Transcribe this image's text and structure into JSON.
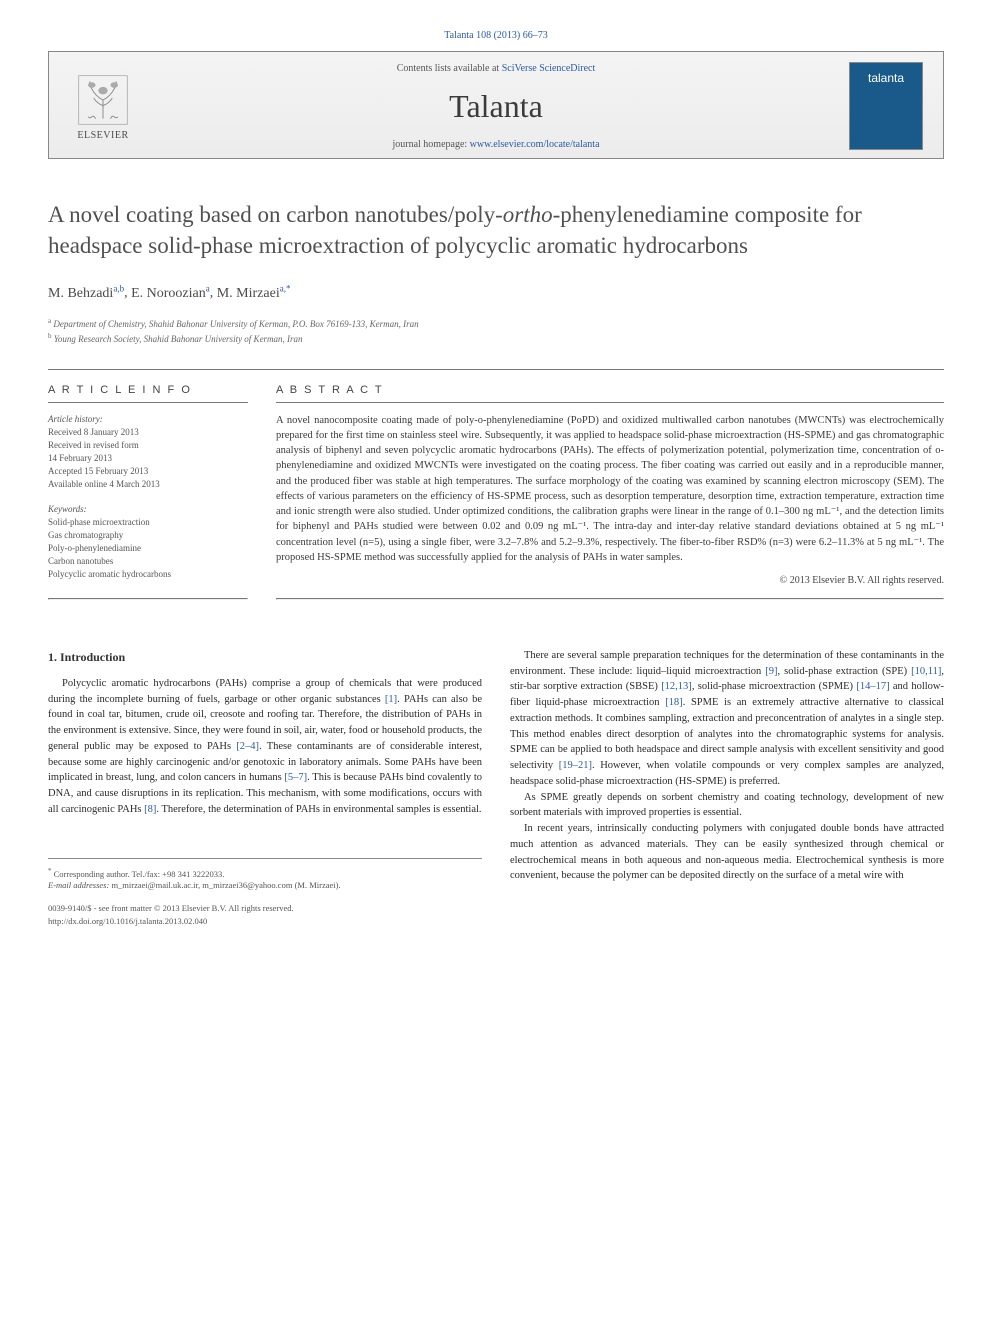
{
  "citation": {
    "journal": "Talanta",
    "vol_pages": "108 (2013) 66–73"
  },
  "header": {
    "publisher": "ELSEVIER",
    "contents_prefix": "Contents lists available at ",
    "contents_link": "SciVerse ScienceDirect",
    "journal_name": "Talanta",
    "homepage_prefix": "journal homepage: ",
    "homepage_url": "www.elsevier.com/locate/talanta",
    "cover_label": "talanta"
  },
  "title": {
    "pre": "A novel coating based on carbon nanotubes/poly-",
    "italic": "ortho",
    "post": "-phenylenediamine composite for headspace solid-phase microextraction of polycyclic aromatic hydrocarbons"
  },
  "authors": [
    {
      "name": "M. Behzadi",
      "affsup": "a,b"
    },
    {
      "name": "E. Noroozian",
      "affsup": "a"
    },
    {
      "name": "M. Mirzaei",
      "affsup": "a,*"
    }
  ],
  "affiliations": [
    {
      "sup": "a",
      "text": "Department of Chemistry, Shahid Bahonar University of Kerman, P.O. Box 76169-133, Kerman, Iran"
    },
    {
      "sup": "b",
      "text": "Young Research Society, Shahid Bahonar University of Kerman, Iran"
    }
  ],
  "article_info": {
    "header": "A R T I C L E  I N F O",
    "history_label": "Article history:",
    "history": [
      "Received 8 January 2013",
      "Received in revised form",
      "14 February 2013",
      "Accepted 15 February 2013",
      "Available online 4 March 2013"
    ],
    "keywords_label": "Keywords:",
    "keywords": [
      "Solid-phase microextraction",
      "Gas chromatography",
      "Poly-o-phenylenediamine",
      "Carbon nanotubes",
      "Polycyclic aromatic hydrocarbons"
    ]
  },
  "abstract": {
    "header": "A B S T R A C T",
    "text": "A novel nanocomposite coating made of poly-o-phenylenediamine (PoPD) and oxidized multiwalled carbon nanotubes (MWCNTs) was electrochemically prepared for the first time on stainless steel wire. Subsequently, it was applied to headspace solid-phase microextraction (HS-SPME) and gas chromatographic analysis of biphenyl and seven polycyclic aromatic hydrocarbons (PAHs). The effects of polymerization potential, polymerization time, concentration of o-phenylenediamine and oxidized MWCNTs were investigated on the coating process. The fiber coating was carried out easily and in a reproducible manner, and the produced fiber was stable at high temperatures. The surface morphology of the coating was examined by scanning electron microscopy (SEM). The effects of various parameters on the efficiency of HS-SPME process, such as desorption temperature, desorption time, extraction temperature, extraction time and ionic strength were also studied. Under optimized conditions, the calibration graphs were linear in the range of 0.1–300 ng mL⁻¹, and the detection limits for biphenyl and PAHs studied were between 0.02 and 0.09 ng mL⁻¹. The intra-day and inter-day relative standard deviations obtained at 5 ng mL⁻¹ concentration level (n=5), using a single fiber, were 3.2–7.8% and 5.2–9.3%, respectively. The fiber-to-fiber RSD% (n=3) were 6.2–11.3% at 5 ng mL⁻¹. The proposed HS-SPME method was successfully applied for the analysis of PAHs in water samples.",
    "copyright": "© 2013 Elsevier B.V. All rights reserved."
  },
  "body": {
    "section_heading": "1.  Introduction",
    "p1": "Polycyclic aromatic hydrocarbons (PAHs) comprise a group of chemicals that were produced during the incomplete burning of fuels, garbage or other organic substances [1]. PAHs can also be found in coal tar, bitumen, crude oil, creosote and roofing tar. Therefore, the distribution of PAHs in the environment is extensive. Since, they were found in soil, air, water, food or household products, the general public may be exposed to PAHs [2–4]. These contaminants are of considerable interest, because some are highly carcinogenic and/or genotoxic in laboratory animals. Some PAHs have been implicated in breast, lung, and colon cancers in humans [5–7]. This is because PAHs bind covalently to DNA, and cause disruptions in its replication. This mechanism, with some modifications, occurs with all carcinogenic PAHs [8]. Therefore, the determination of PAHs in environmental samples is essential.",
    "p2": "There are several sample preparation techniques for the determination of these contaminants in the environment. These include: liquid–liquid microextraction [9], solid-phase extraction (SPE) [10,11], stir-bar sorptive extraction (SBSE) [12,13], solid-phase microextraction (SPME) [14–17] and hollow-fiber liquid-phase microextraction [18]. SPME is an extremely attractive alternative to classical extraction methods. It combines sampling, extraction and preconcentration of analytes in a single step. This method enables direct desorption of analytes into the chromatographic systems for analysis. SPME can be applied to both headspace and direct sample analysis with excellent sensitivity and good selectivity [19–21]. However, when volatile compounds or very complex samples are analyzed, headspace solid-phase microextraction (HS-SPME) is preferred.",
    "p3": "As SPME greatly depends on sorbent chemistry and coating technology, development of new sorbent materials with improved properties is essential.",
    "p4": "In recent years, intrinsically conducting polymers with conjugated double bonds have attracted much attention as advanced materials. They can be easily synthesized through chemical or electrochemical means in both aqueous and non-aqueous media. Electrochemical synthesis is more convenient, because the polymer can be deposited directly on the surface of a metal wire with"
  },
  "footer": {
    "corresponding_label": "* Corresponding author. Tel./fax: +98 341 3222033.",
    "email_label": "E-mail addresses:",
    "emails": "m_mirzaei@mail.uk.ac.ir, m_mirzaei36@yahoo.com",
    "email_author": "(M. Mirzaei).",
    "copyright_line": "0039-9140/$ - see front matter © 2013 Elsevier B.V. All rights reserved.",
    "doi": "http://dx.doi.org/10.1016/j.talanta.2013.02.040"
  },
  "colors": {
    "link": "#2c5aa0",
    "text": "#3a3a3a",
    "rule": "#777777",
    "orange": "#e67817"
  }
}
